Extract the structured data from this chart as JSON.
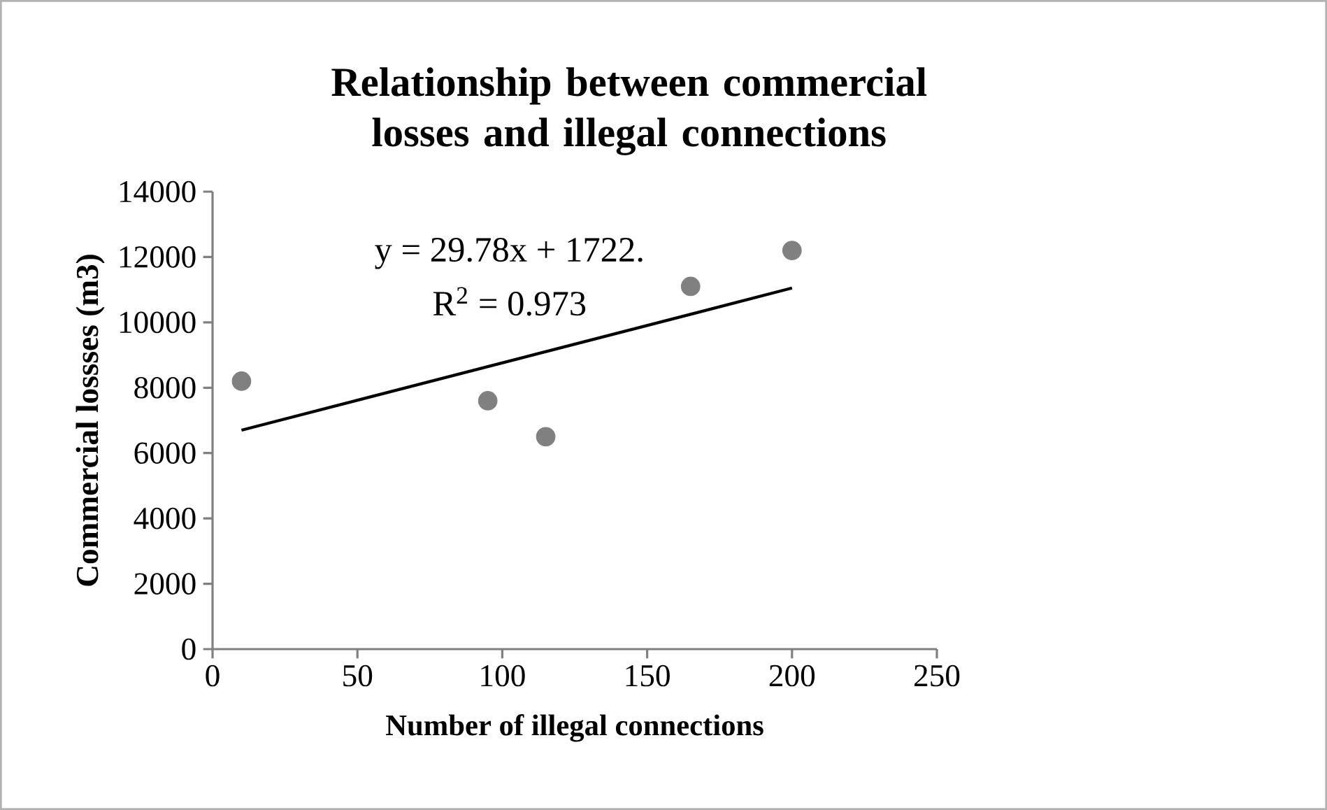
{
  "chart_data": {
    "type": "scatter",
    "title": "Relationship between commercial losses and illegal connections",
    "xlabel": "Number of illegal connections",
    "ylabel": "Commercial lossses (m3)",
    "series": [
      {
        "color": "#808080",
        "marker": "circle",
        "x": [
          10,
          95,
          115,
          165,
          200
        ],
        "values": [
          8200,
          7600,
          6500,
          11100,
          12200
        ]
      },
      {
        "type": "line",
        "color": "#000000",
        "marker": "none",
        "x": [
          10,
          200
        ],
        "values": [
          6700,
          11050
        ]
      }
    ],
    "annotations": [
      "y = 29.78x + 1722.",
      "R$^{2}$ = 0.973"
    ],
    "xlim": [
      0,
      250
    ],
    "xticks": [
      0,
      50,
      100,
      150,
      200,
      250
    ],
    "ylim": [
      0,
      14000
    ],
    "yticks": [
      0,
      2000,
      4000,
      6000,
      8000,
      10000,
      12000,
      14000
    ],
    "grid": false
  }
}
